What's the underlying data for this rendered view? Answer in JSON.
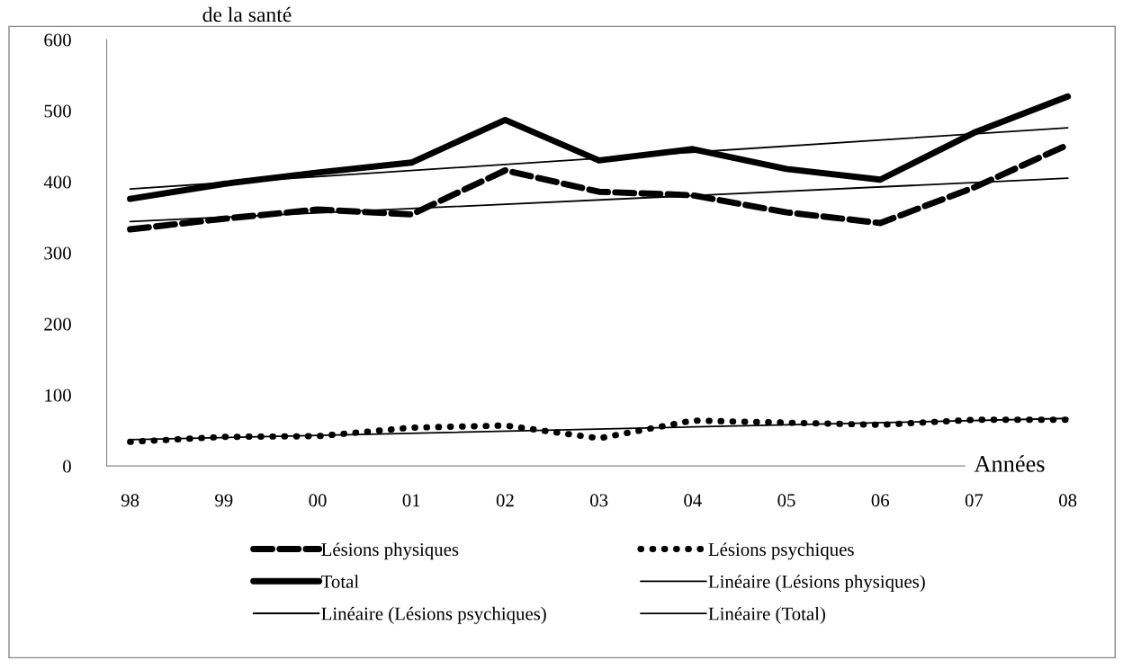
{
  "chart_data": {
    "type": "line",
    "title": "de la santé",
    "xlabel": "Années",
    "categories": [
      "98",
      "99",
      "00",
      "01",
      "02",
      "03",
      "04",
      "05",
      "06",
      "07",
      "08"
    ],
    "series": [
      {
        "name": "Lésions physiques",
        "color": "#000000",
        "line_style": "dashed",
        "values": [
          333,
          348,
          361,
          354,
          416,
          386,
          381,
          357,
          342,
          392,
          452
        ]
      },
      {
        "name": "Lésions psychiques",
        "color": "#000000",
        "line_style": "dotted",
        "values": [
          34,
          41,
          42,
          54,
          57,
          39,
          64,
          61,
          58,
          65,
          65
        ]
      },
      {
        "name": "Total",
        "color": "#000000",
        "line_style": "solid",
        "values": [
          376,
          397,
          413,
          427,
          487,
          430,
          446,
          418,
          403,
          469,
          520
        ]
      },
      {
        "name": "Linéaire (Lésions physiques)",
        "color": "#000000",
        "line_style": "solid",
        "x": [
          "98",
          "08"
        ],
        "values": [
          344,
          405
        ]
      },
      {
        "name": "Linéaire (Lésions psychiques)",
        "color": "#000000",
        "line_style": "solid",
        "x": [
          "98",
          "08"
        ],
        "values": [
          37,
          67
        ]
      },
      {
        "name": "Linéaire (Total)",
        "color": "#000000",
        "line_style": "solid",
        "x": [
          "98",
          "08"
        ],
        "values": [
          390,
          476
        ]
      }
    ],
    "ylim": [
      0,
      600
    ],
    "yticks": [
      0,
      100,
      200,
      300,
      400,
      500,
      600
    ],
    "grid": false,
    "legend": "bottom",
    "marker": "none"
  }
}
